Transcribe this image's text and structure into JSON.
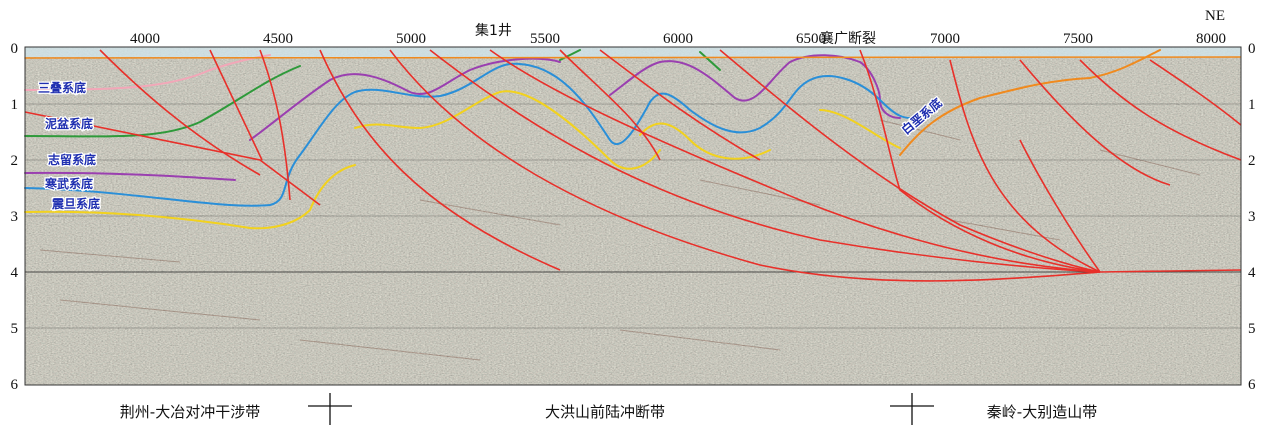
{
  "top_axis": {
    "ticks": [
      "4000",
      "4500",
      "5000",
      "5500",
      "6000",
      "6500",
      "7000",
      "7500",
      "8000"
    ],
    "direction": "NE"
  },
  "time_axis": {
    "ticks": [
      "0",
      "1",
      "2",
      "3",
      "4",
      "5",
      "6"
    ]
  },
  "annotations": {
    "well": "集1井",
    "fault": "襄广断裂"
  },
  "horizons": [
    {
      "label": "三叠系底",
      "color": "#f2a7b8"
    },
    {
      "label": "泥盆系底",
      "color": "#2e9a3a"
    },
    {
      "label": "志留系底",
      "color": "#9a3fb0"
    },
    {
      "label": "寒武系底",
      "color": "#2a8fd8"
    },
    {
      "label": "震旦系底",
      "color": "#f2d21e"
    },
    {
      "label": "白垩系底",
      "color": "#f08a1e"
    }
  ],
  "fault_color": "#e8302a",
  "zones": [
    {
      "label": "荆州-大冶对冲干涉带"
    },
    {
      "label": "大洪山前陆冲断带"
    },
    {
      "label": "秦岭-大别造山带"
    }
  ]
}
